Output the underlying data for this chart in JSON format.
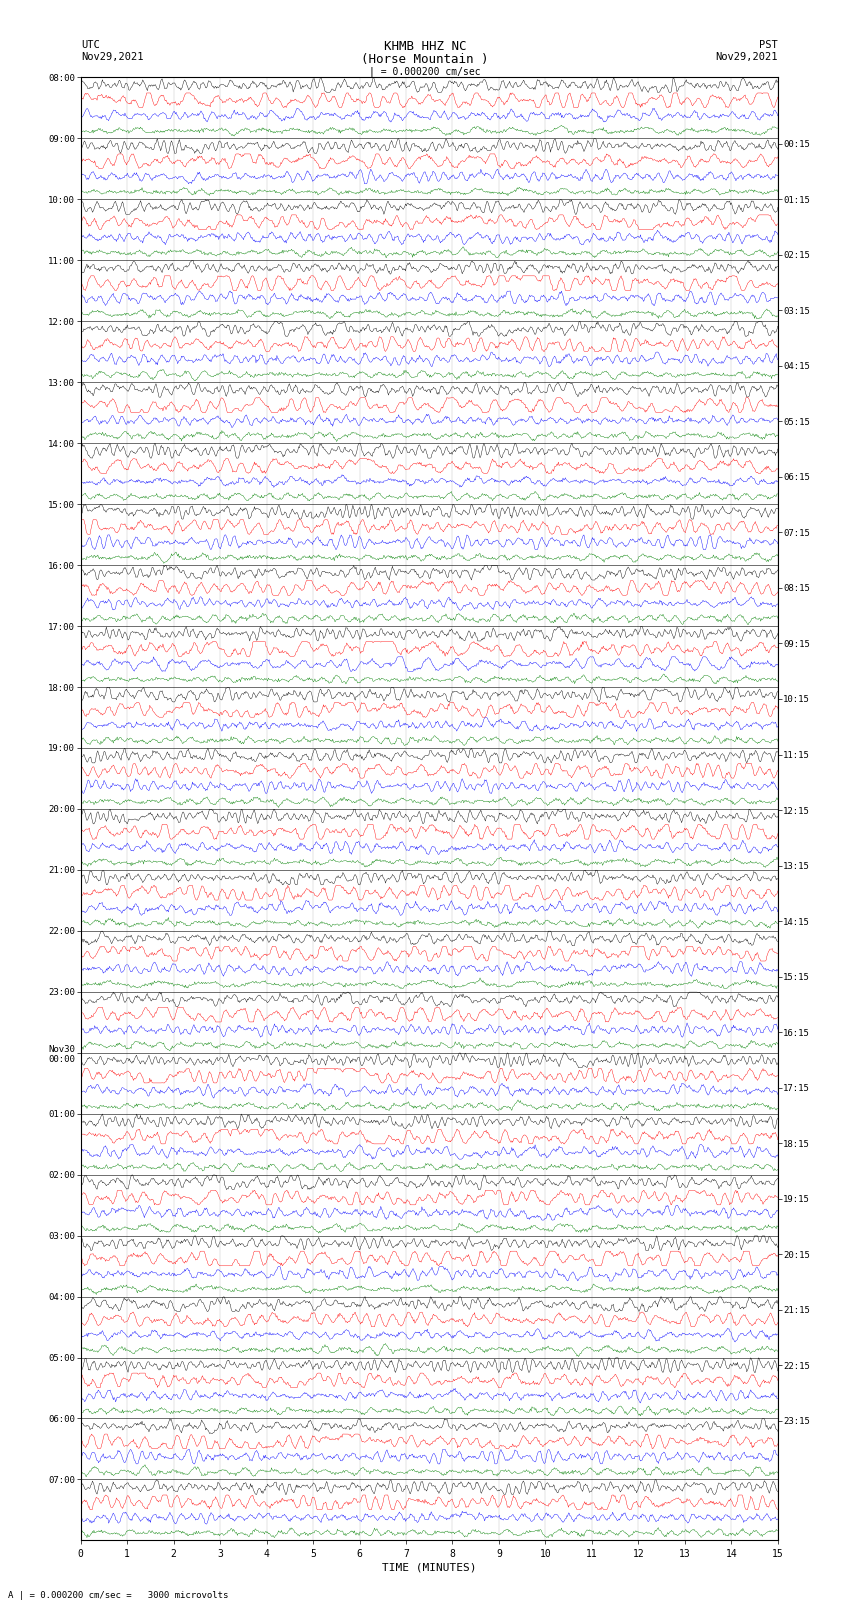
{
  "title_line1": "KHMB HHZ NC",
  "title_line2": "(Horse Mountain )",
  "title_line3": "| = 0.000200 cm/sec",
  "scale_label": "A | = 0.000200 cm/sec =   3000 microvolts",
  "xlabel": "TIME (MINUTES)",
  "xmin": 0,
  "xmax": 15,
  "xticks": [
    0,
    1,
    2,
    3,
    4,
    5,
    6,
    7,
    8,
    9,
    10,
    11,
    12,
    13,
    14,
    15
  ],
  "left_times": [
    "08:00",
    "09:00",
    "10:00",
    "11:00",
    "12:00",
    "13:00",
    "14:00",
    "15:00",
    "16:00",
    "17:00",
    "18:00",
    "19:00",
    "20:00",
    "21:00",
    "22:00",
    "23:00",
    "Nov30\n00:00",
    "01:00",
    "02:00",
    "03:00",
    "04:00",
    "05:00",
    "06:00",
    "07:00"
  ],
  "right_times": [
    "00:15",
    "01:15",
    "02:15",
    "03:15",
    "04:15",
    "05:15",
    "06:15",
    "07:15",
    "08:15",
    "09:15",
    "10:15",
    "11:15",
    "12:15",
    "13:15",
    "14:15",
    "15:15",
    "16:15",
    "17:15",
    "18:15",
    "19:15",
    "20:15",
    "21:15",
    "22:15",
    "23:15"
  ],
  "trace_colors": [
    "black",
    "red",
    "blue",
    "green"
  ],
  "fig_width": 8.5,
  "fig_height": 16.13,
  "bg_color": "white",
  "trace_linewidth": 0.3,
  "n_hours": 24,
  "traces_per_hour": 4,
  "amplitude_scale": 0.35,
  "noise_seed": 42
}
